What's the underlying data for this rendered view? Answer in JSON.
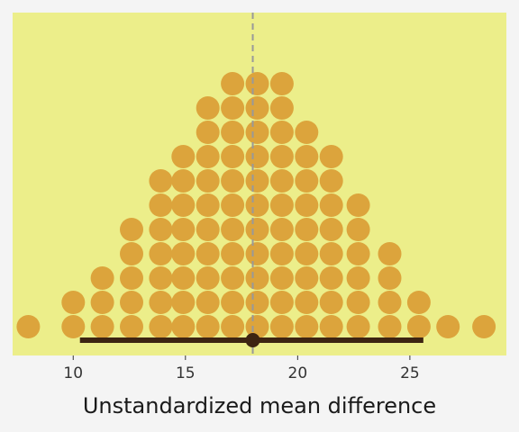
{
  "chart_data": {
    "type": "dotplot",
    "xlabel": "Unstandardized mean difference",
    "ylabel": "",
    "xlim": [
      7.3,
      29.3
    ],
    "xticks": [
      10,
      15,
      20,
      25
    ],
    "grid": false,
    "stacks": [
      {
        "x": 8.0,
        "count": 1
      },
      {
        "x": 10.0,
        "count": 2
      },
      {
        "x": 11.3,
        "count": 3
      },
      {
        "x": 12.6,
        "count": 5
      },
      {
        "x": 13.9,
        "count": 7
      },
      {
        "x": 14.9,
        "count": 8
      },
      {
        "x": 16.0,
        "count": 10
      },
      {
        "x": 17.1,
        "count": 11
      },
      {
        "x": 18.2,
        "count": 11
      },
      {
        "x": 19.3,
        "count": 11
      },
      {
        "x": 20.4,
        "count": 9
      },
      {
        "x": 21.5,
        "count": 8
      },
      {
        "x": 22.7,
        "count": 6
      },
      {
        "x": 24.1,
        "count": 4
      },
      {
        "x": 25.4,
        "count": 2
      },
      {
        "x": 26.7,
        "count": 1
      },
      {
        "x": 28.3,
        "count": 1
      }
    ],
    "reference_line": 18.0,
    "interval": {
      "point": 18.0,
      "lower": 10.3,
      "upper": 25.6
    },
    "colors": {
      "panel": "#ecee8a",
      "page": "#f4f4f4",
      "dots": "#dca43c",
      "interval": "#3d2412",
      "reference_line": "#999999"
    }
  }
}
